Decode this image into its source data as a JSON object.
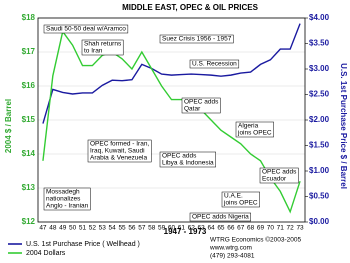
{
  "chart_data": {
    "type": "line",
    "title": "MIDDLE EAST, OPEC  &  OIL PRICES",
    "ylabel": "2004 $ / Barrel",
    "y2label": "U.S. 1st Purchase Price $ / Barrel",
    "xlabel": "1947 - 1973",
    "categories": [
      "47",
      "48",
      "49",
      "50",
      "51",
      "52",
      "53",
      "54",
      "55",
      "56",
      "57",
      "58",
      "59",
      "60",
      "61",
      "62",
      "63",
      "64",
      "65",
      "66",
      "67",
      "68",
      "69",
      "70",
      "71",
      "72",
      "73"
    ],
    "series": [
      {
        "name": "U.S. 1st Purchase Price ( Wellhead )",
        "color": "#1a1aa0",
        "axis": "y2",
        "values": [
          1.93,
          2.6,
          2.54,
          2.51,
          2.53,
          2.53,
          2.68,
          2.78,
          2.77,
          2.79,
          3.09,
          3.01,
          2.9,
          2.88,
          2.89,
          2.9,
          2.89,
          2.88,
          2.86,
          2.88,
          2.92,
          2.94,
          3.09,
          3.18,
          3.39,
          3.39,
          3.89
        ]
      },
      {
        "name": "2004 Dollars",
        "color": "#33cc33",
        "values": [
          13.8,
          16.3,
          17.6,
          17.2,
          16.6,
          16.6,
          16.9,
          17.0,
          16.8,
          16.5,
          17.0,
          16.5,
          16.0,
          15.6,
          15.6,
          15.5,
          15.3,
          15.0,
          14.7,
          14.5,
          14.3,
          14.0,
          13.8,
          13.3,
          12.9,
          12.3,
          13.2
        ]
      }
    ],
    "ylim": [
      12,
      18
    ],
    "yticks": [
      {
        "value": 12,
        "label": "$12"
      },
      {
        "value": 13,
        "label": "$13"
      },
      {
        "value": 14,
        "label": "$14"
      },
      {
        "value": 15,
        "label": "$15"
      },
      {
        "value": 16,
        "label": "$16"
      },
      {
        "value": 17,
        "label": "$17"
      },
      {
        "value": 18,
        "label": "$18"
      }
    ],
    "y2lim": [
      0,
      4
    ],
    "y2ticks": [
      {
        "value": 0,
        "label": "$0.00"
      },
      {
        "value": 0.5,
        "label": "$0.50"
      },
      {
        "value": 1,
        "label": "$1.00"
      },
      {
        "value": 1.5,
        "label": "$1.50"
      },
      {
        "value": 2,
        "label": "$2.00"
      },
      {
        "value": 2.5,
        "label": "$2.50"
      },
      {
        "value": 3,
        "label": "$3.00"
      },
      {
        "value": 3.5,
        "label": "$3.50"
      },
      {
        "value": 4,
        "label": "$4.00"
      }
    ],
    "grid": true,
    "annotations": [
      [
        "Saudi 50-50 deal w/Aramco"
      ],
      [
        "Shah returns",
        "to Iran"
      ],
      [
        "Suez Crisis 1956 - 1957"
      ],
      [
        "U.S. Recession"
      ],
      [
        "OPEC adds",
        "Qatar"
      ],
      [
        "OPEC formed - Iran,",
        "Iraq, Kuwait, Saudi",
        "Arabia & Venezuela"
      ],
      [
        "Algeria",
        "joins OPEC"
      ],
      [
        "OPEC adds",
        "Libya & Indonesia"
      ],
      [
        "OPEC adds",
        "Ecuador"
      ],
      [
        "Mossadegh",
        "nationalizes",
        "Anglo - Iranian"
      ],
      [
        "U.A.E.",
        "joins OPEC"
      ],
      [
        "OPEC adds Nigeria"
      ]
    ],
    "footer": [
      "WTRG Economics  ©2003-2005",
      "www.wtrg.com",
      "(479) 293-4081"
    ]
  }
}
